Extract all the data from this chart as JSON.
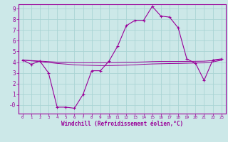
{
  "xlabel": "Windchill (Refroidissement éolien,°C)",
  "background_color": "#cce8e8",
  "grid_color": "#aad4d4",
  "line_color": "#990099",
  "hours": [
    0,
    1,
    2,
    3,
    4,
    5,
    6,
    7,
    8,
    9,
    10,
    11,
    12,
    13,
    14,
    15,
    16,
    17,
    18,
    19,
    20,
    21,
    22,
    23
  ],
  "windchill": [
    4.2,
    3.8,
    4.1,
    3.0,
    -0.2,
    -0.2,
    -0.3,
    1.0,
    3.2,
    3.2,
    4.1,
    5.5,
    7.4,
    7.9,
    7.9,
    9.2,
    8.3,
    8.2,
    7.2,
    4.3,
    3.9,
    2.3,
    4.2,
    4.3
  ],
  "temp_line1": [
    4.2,
    4.15,
    4.1,
    4.05,
    4.0,
    4.0,
    3.95,
    3.95,
    3.95,
    3.95,
    3.95,
    3.97,
    4.0,
    4.0,
    4.02,
    4.05,
    4.07,
    4.07,
    4.07,
    4.07,
    4.08,
    4.09,
    4.15,
    4.25
  ],
  "temp_line2": [
    4.2,
    4.12,
    4.05,
    3.97,
    3.88,
    3.82,
    3.75,
    3.72,
    3.7,
    3.68,
    3.68,
    3.7,
    3.72,
    3.75,
    3.8,
    3.83,
    3.85,
    3.87,
    3.88,
    3.9,
    3.92,
    3.93,
    4.02,
    4.18
  ],
  "ylim": [
    -0.8,
    9.4
  ],
  "xlim": [
    -0.5,
    23.5
  ],
  "ytick_vals": [
    0,
    1,
    2,
    3,
    4,
    5,
    6,
    7,
    8,
    9
  ],
  "ytick_labels": [
    "-0",
    "1",
    "2",
    "3",
    "4",
    "5",
    "6",
    "7",
    "8",
    "9"
  ],
  "xticks": [
    0,
    1,
    2,
    3,
    4,
    5,
    6,
    7,
    8,
    9,
    10,
    11,
    12,
    13,
    14,
    15,
    16,
    17,
    18,
    19,
    20,
    21,
    22,
    23
  ]
}
